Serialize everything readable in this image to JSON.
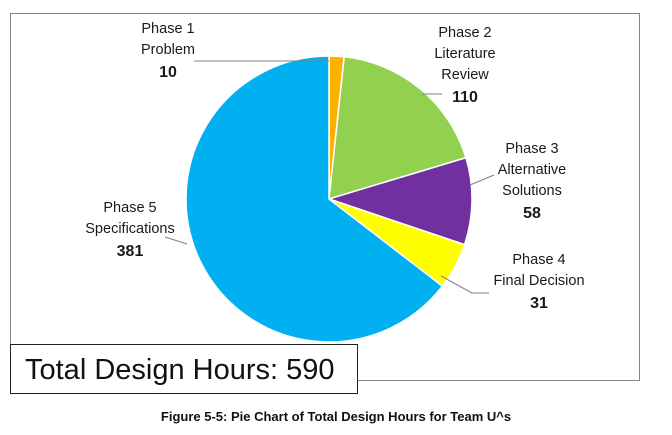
{
  "chart_data": {
    "type": "pie",
    "slices": [
      {
        "label_lines": [
          "Phase 1",
          "Problem"
        ],
        "value": 10,
        "color": "#FFB000"
      },
      {
        "label_lines": [
          "Phase 2",
          "Literature",
          "Review"
        ],
        "value": 110,
        "color": "#92D050"
      },
      {
        "label_lines": [
          "Phase 3",
          "Alternative",
          "Solutions"
        ],
        "value": 58,
        "color": "#7030A0"
      },
      {
        "label_lines": [
          "Phase 4",
          "Final Decision"
        ],
        "value": 31,
        "color": "#FFFF00"
      },
      {
        "label_lines": [
          "Phase 5",
          "Specifications"
        ],
        "value": 381,
        "color": "#00B0F0"
      }
    ],
    "start_angle": "12 o'clock",
    "direction": "clockwise",
    "slice_border_color": "#ffffff"
  },
  "total_box": {
    "text": "Total Design Hours: 590"
  },
  "caption": "Figure 5-5: Pie Chart of Total Design Hours for Team U^s"
}
